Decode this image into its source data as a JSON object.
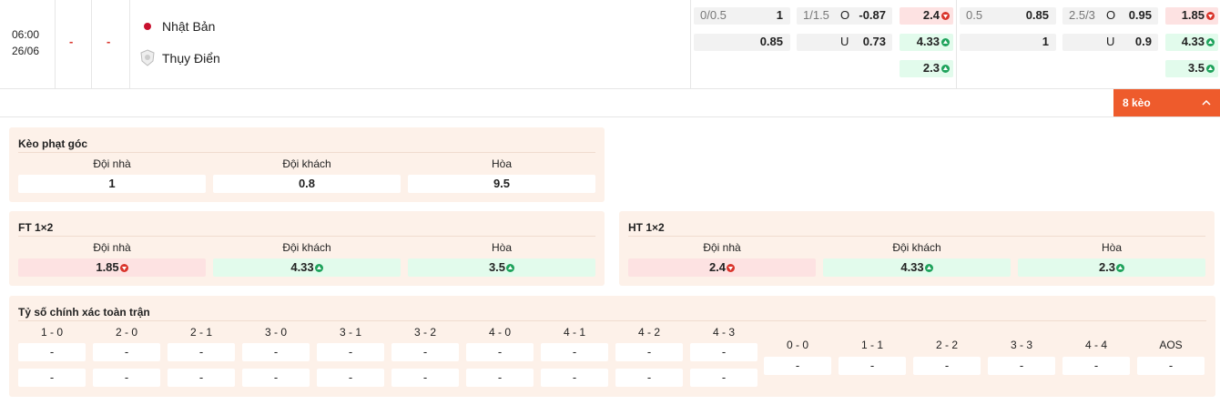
{
  "match": {
    "time": "06:00",
    "date": "26/06",
    "home_score": "-",
    "away_score": "-",
    "home_team": "Nhật Bản",
    "away_team": "Thụy Điển"
  },
  "odds": [
    {
      "handicap": {
        "line": "0/0.5",
        "home": "1",
        "away": "0.85"
      },
      "over_under": {
        "line": "1/1.5",
        "over_label": "O",
        "over": "-0.87",
        "under_label": "U",
        "under": "0.73"
      },
      "x12": [
        {
          "value": "2.4",
          "trend": "down"
        },
        {
          "value": "4.33",
          "trend": "up"
        },
        {
          "value": "2.3",
          "trend": "up"
        }
      ]
    },
    {
      "handicap": {
        "line": "0.5",
        "home": "0.85",
        "away": "1"
      },
      "over_under": {
        "line": "2.5/3",
        "over_label": "O",
        "over": "0.95",
        "under_label": "U",
        "under": "0.9"
      },
      "x12": [
        {
          "value": "1.85",
          "trend": "down"
        },
        {
          "value": "4.33",
          "trend": "up"
        },
        {
          "value": "3.5",
          "trend": "up"
        }
      ]
    }
  ],
  "more_button": "8 kèo",
  "panels": [
    {
      "title": "Kèo phạt góc",
      "headers": [
        "Đội nhà",
        "Đội khách",
        "Hòa"
      ],
      "cells": [
        {
          "value": "1"
        },
        {
          "value": "0.8"
        },
        {
          "value": "9.5"
        }
      ]
    },
    {
      "title": "FT 1×2",
      "headers": [
        "Đội nhà",
        "Đội khách",
        "Hòa"
      ],
      "cells": [
        {
          "value": "1.85",
          "trend": "down"
        },
        {
          "value": "4.33",
          "trend": "up"
        },
        {
          "value": "3.5",
          "trend": "up"
        }
      ]
    },
    {
      "title": "HT 1×2",
      "headers": [
        "Đội nhà",
        "Đội khách",
        "Hòa"
      ],
      "cells": [
        {
          "value": "2.4",
          "trend": "down"
        },
        {
          "value": "4.33",
          "trend": "up"
        },
        {
          "value": "2.3",
          "trend": "up"
        }
      ]
    }
  ],
  "exact_score": {
    "title": "Tỷ số chính xác toàn trận",
    "scores": [
      {
        "label": "1 - 0",
        "values": [
          "-",
          "-"
        ]
      },
      {
        "label": "2 - 0",
        "values": [
          "-",
          "-"
        ]
      },
      {
        "label": "2 - 1",
        "values": [
          "-",
          "-"
        ]
      },
      {
        "label": "3 - 0",
        "values": [
          "-",
          "-"
        ]
      },
      {
        "label": "3 - 1",
        "values": [
          "-",
          "-"
        ]
      },
      {
        "label": "3 - 2",
        "values": [
          "-",
          "-"
        ]
      },
      {
        "label": "4 - 0",
        "values": [
          "-",
          "-"
        ]
      },
      {
        "label": "4 - 1",
        "values": [
          "-",
          "-"
        ]
      },
      {
        "label": "4 - 2",
        "values": [
          "-",
          "-"
        ]
      },
      {
        "label": "4 - 3",
        "values": [
          "-",
          "-"
        ]
      }
    ],
    "draws": [
      {
        "label": "0 - 0",
        "value": "-"
      },
      {
        "label": "1 - 1",
        "value": "-"
      },
      {
        "label": "2 - 2",
        "value": "-"
      },
      {
        "label": "3 - 3",
        "value": "-"
      },
      {
        "label": "4 - 4",
        "value": "-"
      },
      {
        "label": "AOS",
        "value": "-"
      }
    ]
  }
}
